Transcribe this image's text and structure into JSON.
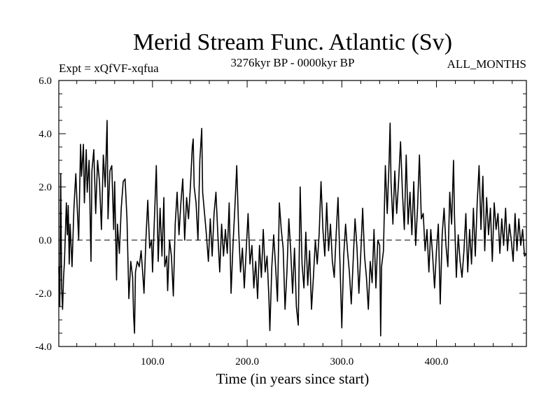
{
  "chart_data": {
    "type": "line",
    "title": "Merid Stream Func. Atlantic (Sv)",
    "subtitle_left": "Expt = xQfVF-xqfua",
    "subtitle_center": "3276kyr BP - 0000kyr BP",
    "subtitle_right": "ALL_MONTHS",
    "xlabel": "Time (in years since start)",
    "ylabel": "",
    "xlim": [
      1,
      495
    ],
    "ylim": [
      -4.0,
      6.0
    ],
    "x_ticks": [
      100.0,
      200.0,
      300.0,
      400.0
    ],
    "x_tick_labels": [
      "100.0",
      "200.0",
      "300.0",
      "400.0"
    ],
    "y_ticks": [
      -4.0,
      -2.0,
      0.0,
      2.0,
      4.0,
      6.0
    ],
    "y_tick_labels": [
      "-4.0",
      "-2.0",
      "0.0",
      "2.0",
      "4.0",
      "6.0"
    ],
    "reference_line": {
      "y": 0.0,
      "style": "dashed"
    },
    "grid": false,
    "series": [
      {
        "name": "Merid Stream Func. Atlantic",
        "color": "#000000",
        "keypoints": [
          [
            1,
            -1.0
          ],
          [
            2,
            -2.5
          ],
          [
            3,
            2.5
          ],
          [
            4,
            -1.8
          ],
          [
            5,
            -2.6
          ],
          [
            6,
            -1.4
          ],
          [
            7,
            -0.8
          ],
          [
            9,
            1.4
          ],
          [
            10,
            0.2
          ],
          [
            11,
            1.3
          ],
          [
            12,
            -0.9
          ],
          [
            13,
            0.6
          ],
          [
            15,
            -1.0
          ],
          [
            17,
            1.2
          ],
          [
            19,
            2.5
          ],
          [
            20,
            1.6
          ],
          [
            22,
            0.0
          ],
          [
            24,
            3.6
          ],
          [
            25,
            2.4
          ],
          [
            27,
            3.6
          ],
          [
            28,
            1.4
          ],
          [
            30,
            3.4
          ],
          [
            31,
            1.8
          ],
          [
            33,
            3.0
          ],
          [
            35,
            -0.8
          ],
          [
            36,
            2.6
          ],
          [
            38,
            3.4
          ],
          [
            40,
            1.0
          ],
          [
            42,
            3.0
          ],
          [
            44,
            2.2
          ],
          [
            46,
            0.4
          ],
          [
            48,
            3.2
          ],
          [
            50,
            2.0
          ],
          [
            52,
            4.5
          ],
          [
            53,
            0.8
          ],
          [
            55,
            2.6
          ],
          [
            57,
            2.8
          ],
          [
            59,
            0.4
          ],
          [
            60,
            2.2
          ],
          [
            62,
            -1.5
          ],
          [
            63,
            0.6
          ],
          [
            65,
            -0.5
          ],
          [
            67,
            1.2
          ],
          [
            69,
            2.2
          ],
          [
            71,
            2.3
          ],
          [
            73,
            0.8
          ],
          [
            75,
            -2.2
          ],
          [
            77,
            -0.8
          ],
          [
            79,
            -1.4
          ],
          [
            80,
            -2.8
          ],
          [
            81,
            -3.5
          ],
          [
            82,
            -1.2
          ],
          [
            84,
            -0.8
          ],
          [
            86,
            -1.0
          ],
          [
            88,
            -0.4
          ],
          [
            90,
            -1.4
          ],
          [
            91,
            -2.0
          ],
          [
            93,
            0.0
          ],
          [
            95,
            1.5
          ],
          [
            97,
            -0.3
          ],
          [
            99,
            0.0
          ],
          [
            100,
            -1.2
          ],
          [
            102,
            0.8
          ],
          [
            104,
            2.8
          ],
          [
            106,
            -0.8
          ],
          [
            108,
            1.2
          ],
          [
            110,
            -0.6
          ],
          [
            112,
            1.6
          ],
          [
            113,
            -1.0
          ],
          [
            115,
            -0.6
          ],
          [
            116,
            -1.9
          ],
          [
            118,
            0.0
          ],
          [
            120,
            -0.6
          ],
          [
            122,
            -2.1
          ],
          [
            124,
            0.6
          ],
          [
            126,
            1.8
          ],
          [
            128,
            0.2
          ],
          [
            130,
            1.4
          ],
          [
            132,
            2.3
          ],
          [
            134,
            0.0
          ],
          [
            136,
            1.6
          ],
          [
            138,
            0.8
          ],
          [
            140,
            2.0
          ],
          [
            142,
            3.5
          ],
          [
            143,
            3.8
          ],
          [
            144,
            2.0
          ],
          [
            146,
            1.4
          ],
          [
            148,
            0.0
          ],
          [
            150,
            3.0
          ],
          [
            152,
            4.2
          ],
          [
            153,
            1.8
          ],
          [
            155,
            1.0
          ],
          [
            157,
            0.2
          ],
          [
            159,
            -0.8
          ],
          [
            161,
            0.8
          ],
          [
            163,
            -0.6
          ],
          [
            165,
            1.0
          ],
          [
            167,
            1.8
          ],
          [
            169,
            0.2
          ],
          [
            171,
            -1.2
          ],
          [
            173,
            0.6
          ],
          [
            175,
            -0.6
          ],
          [
            177,
            0.4
          ],
          [
            179,
            -0.5
          ],
          [
            181,
            1.4
          ],
          [
            183,
            -2.0
          ],
          [
            185,
            -0.2
          ],
          [
            187,
            1.2
          ],
          [
            189,
            2.8
          ],
          [
            191,
            0.4
          ],
          [
            193,
            -1.2
          ],
          [
            195,
            -0.3
          ],
          [
            197,
            -1.8
          ],
          [
            199,
            -0.4
          ],
          [
            201,
            1.0
          ],
          [
            203,
            -0.9
          ],
          [
            205,
            -0.2
          ],
          [
            207,
            -1.8
          ],
          [
            209,
            -0.8
          ],
          [
            211,
            -2.2
          ],
          [
            213,
            -0.2
          ],
          [
            215,
            -1.4
          ],
          [
            217,
            0.4
          ],
          [
            219,
            -1.2
          ],
          [
            221,
            -0.6
          ],
          [
            223,
            -2.2
          ],
          [
            224,
            -3.4
          ],
          [
            226,
            -1.0
          ],
          [
            228,
            0.2
          ],
          [
            230,
            -1.0
          ],
          [
            232,
            -2.3
          ],
          [
            234,
            1.4
          ],
          [
            236,
            0.4
          ],
          [
            238,
            -0.3
          ],
          [
            240,
            -2.6
          ],
          [
            242,
            -1.2
          ],
          [
            244,
            0.8
          ],
          [
            246,
            -0.4
          ],
          [
            248,
            -2.0
          ],
          [
            250,
            -0.3
          ],
          [
            252,
            -2.5
          ],
          [
            254,
            -3.2
          ],
          [
            256,
            2.0
          ],
          [
            258,
            -0.9
          ],
          [
            260,
            -1.8
          ],
          [
            262,
            0.3
          ],
          [
            264,
            -1.7
          ],
          [
            266,
            -0.4
          ],
          [
            268,
            -2.6
          ],
          [
            270,
            -1.4
          ],
          [
            272,
            0.0
          ],
          [
            274,
            -0.9
          ],
          [
            276,
            0.2
          ],
          [
            278,
            2.2
          ],
          [
            280,
            0.4
          ],
          [
            282,
            -0.6
          ],
          [
            284,
            1.4
          ],
          [
            286,
            -0.4
          ],
          [
            288,
            0.6
          ],
          [
            290,
            -0.8
          ],
          [
            292,
            -1.4
          ],
          [
            294,
            0.2
          ],
          [
            296,
            1.6
          ],
          [
            298,
            -0.8
          ],
          [
            300,
            -3.3
          ],
          [
            302,
            -0.6
          ],
          [
            304,
            0.6
          ],
          [
            306,
            -0.4
          ],
          [
            308,
            -1.2
          ],
          [
            310,
            -2.4
          ],
          [
            312,
            -0.8
          ],
          [
            314,
            0.8
          ],
          [
            316,
            -0.3
          ],
          [
            318,
            -2.0
          ],
          [
            320,
            -0.5
          ],
          [
            322,
            1.2
          ],
          [
            324,
            -0.6
          ],
          [
            326,
            -1.4
          ],
          [
            328,
            -2.6
          ],
          [
            330,
            -0.8
          ],
          [
            332,
            -1.6
          ],
          [
            334,
            0.4
          ],
          [
            336,
            -1.8
          ],
          [
            338,
            0.0
          ],
          [
            340,
            -0.2
          ],
          [
            341,
            -3.6
          ],
          [
            342,
            -1.0
          ],
          [
            344,
            -0.4
          ],
          [
            346,
            2.8
          ],
          [
            348,
            1.0
          ],
          [
            350,
            3.0
          ],
          [
            351,
            4.4
          ],
          [
            352,
            2.2
          ],
          [
            354,
            0.6
          ],
          [
            356,
            2.6
          ],
          [
            358,
            1.0
          ],
          [
            360,
            2.2
          ],
          [
            362,
            3.7
          ],
          [
            364,
            1.8
          ],
          [
            366,
            0.4
          ],
          [
            368,
            3.2
          ],
          [
            370,
            0.6
          ],
          [
            372,
            1.8
          ],
          [
            374,
            0.2
          ],
          [
            376,
            2.2
          ],
          [
            378,
            -0.2
          ],
          [
            380,
            1.2
          ],
          [
            382,
            3.2
          ],
          [
            384,
            0.8
          ],
          [
            386,
            1.0
          ],
          [
            388,
            -0.4
          ],
          [
            390,
            0.4
          ],
          [
            392,
            -1.2
          ],
          [
            394,
            0.4
          ],
          [
            396,
            -0.6
          ],
          [
            398,
            -1.8
          ],
          [
            400,
            -0.4
          ],
          [
            402,
            0.6
          ],
          [
            404,
            -2.4
          ],
          [
            406,
            0.2
          ],
          [
            408,
            1.2
          ],
          [
            410,
            -0.2
          ],
          [
            412,
            -1.0
          ],
          [
            414,
            1.8
          ],
          [
            416,
            0.6
          ],
          [
            418,
            3.0
          ],
          [
            419,
            1.0
          ],
          [
            421,
            -1.4
          ],
          [
            423,
            0.2
          ],
          [
            425,
            -0.8
          ],
          [
            427,
            -1.4
          ],
          [
            429,
            -0.4
          ],
          [
            431,
            1.0
          ],
          [
            433,
            -1.2
          ],
          [
            435,
            0.4
          ],
          [
            437,
            -0.9
          ],
          [
            439,
            1.2
          ],
          [
            441,
            -0.6
          ],
          [
            443,
            1.4
          ],
          [
            445,
            2.8
          ],
          [
            447,
            0.4
          ],
          [
            449,
            2.4
          ],
          [
            451,
            -0.4
          ],
          [
            453,
            1.6
          ],
          [
            455,
            0.2
          ],
          [
            457,
            1.2
          ],
          [
            459,
            -0.8
          ],
          [
            461,
            1.4
          ],
          [
            463,
            0.4
          ],
          [
            465,
            1.0
          ],
          [
            467,
            -0.5
          ],
          [
            469,
            0.8
          ],
          [
            471,
            -0.2
          ],
          [
            473,
            1.2
          ],
          [
            475,
            -0.4
          ],
          [
            477,
            0.6
          ],
          [
            479,
            0.0
          ],
          [
            481,
            -0.8
          ],
          [
            483,
            1.0
          ],
          [
            485,
            -0.4
          ],
          [
            487,
            0.8
          ],
          [
            489,
            -0.2
          ],
          [
            491,
            0.4
          ],
          [
            493,
            -0.6
          ],
          [
            495,
            -0.5
          ]
        ]
      }
    ]
  }
}
